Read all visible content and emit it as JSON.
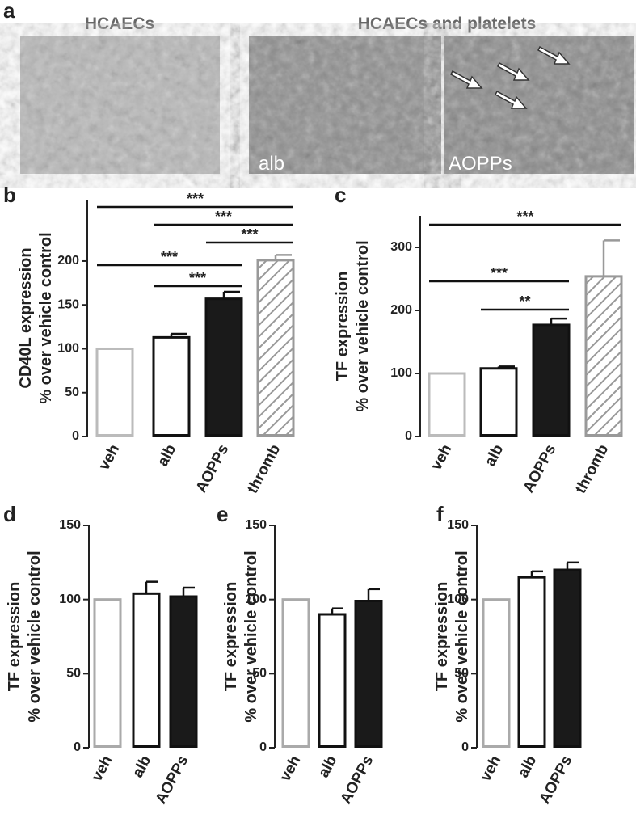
{
  "panel_a": {
    "label": "a",
    "titles": [
      "HCAECs",
      "HCAECs and platelets"
    ],
    "image_labels": [
      "alb",
      "AOPPs"
    ]
  },
  "chart_data": [
    {
      "type": "bar",
      "panel": "b",
      "ylabel": [
        "CD40L expression",
        "% over vehicle control"
      ],
      "categories": [
        "veh",
        "alb",
        "AOPPs",
        "thromb"
      ],
      "values": [
        100,
        113,
        157,
        201
      ],
      "errors": [
        0,
        4,
        8,
        6
      ],
      "colors": [
        "#bbbbbb",
        "#111111",
        "#111111",
        "#999999"
      ],
      "fills": [
        "none",
        "none",
        "#1a1a1a",
        "hatch"
      ],
      "ylim": [
        0,
        270
      ],
      "yticks": [
        0,
        50,
        100,
        150,
        200
      ],
      "brackets": [
        {
          "between": [
            "veh",
            "thromb"
          ],
          "label": "***"
        },
        {
          "between": [
            "alb",
            "thromb"
          ],
          "label": "***"
        },
        {
          "between": [
            "AOPPs",
            "thromb"
          ],
          "label": "***"
        },
        {
          "between": [
            "veh",
            "AOPPs"
          ],
          "label": "***"
        },
        {
          "between": [
            "alb",
            "AOPPs"
          ],
          "label": "***"
        }
      ]
    },
    {
      "type": "bar",
      "panel": "c",
      "ylabel": [
        "TF expression",
        "% over vehicle control"
      ],
      "categories": [
        "veh",
        "alb",
        "AOPPs",
        "thromb"
      ],
      "values": [
        100,
        108,
        177,
        254
      ],
      "errors": [
        0,
        3,
        10,
        57
      ],
      "colors": [
        "#bbbbbb",
        "#111111",
        "#111111",
        "#999999"
      ],
      "fills": [
        "none",
        "none",
        "#1a1a1a",
        "hatch"
      ],
      "ylim": [
        0,
        350
      ],
      "yticks": [
        0,
        100,
        200,
        300
      ],
      "brackets": [
        {
          "between": [
            "veh",
            "thromb"
          ],
          "label": "***"
        },
        {
          "between": [
            "veh",
            "AOPPs"
          ],
          "label": "***"
        },
        {
          "between": [
            "alb",
            "AOPPs"
          ],
          "label": "**"
        }
      ]
    },
    {
      "type": "bar",
      "panel": "d",
      "ylabel": [
        "TF expression",
        "% over vehicle control"
      ],
      "categories": [
        "veh",
        "alb",
        "AOPPs"
      ],
      "values": [
        100,
        104,
        102
      ],
      "errors": [
        0,
        8,
        6
      ],
      "colors": [
        "#aaaaaa",
        "#111111",
        "#111111"
      ],
      "fills": [
        "none",
        "none",
        "#1a1a1a"
      ],
      "ylim": [
        0,
        150
      ],
      "yticks": [
        0,
        50,
        100,
        150
      ]
    },
    {
      "type": "bar",
      "panel": "e",
      "ylabel": [
        "TF expression",
        "% over vehicle control"
      ],
      "categories": [
        "veh",
        "alb",
        "AOPPs"
      ],
      "values": [
        100,
        90,
        99
      ],
      "errors": [
        0,
        4,
        8
      ],
      "colors": [
        "#aaaaaa",
        "#111111",
        "#111111"
      ],
      "fills": [
        "none",
        "none",
        "#1a1a1a"
      ],
      "ylim": [
        0,
        150
      ],
      "yticks": [
        0,
        50,
        100,
        150
      ]
    },
    {
      "type": "bar",
      "panel": "f",
      "ylabel": [
        "TF expression",
        "% over vehicle control"
      ],
      "categories": [
        "veh",
        "alb",
        "AOPPs"
      ],
      "values": [
        100,
        115,
        120
      ],
      "errors": [
        0,
        4,
        5
      ],
      "colors": [
        "#aaaaaa",
        "#111111",
        "#111111"
      ],
      "fills": [
        "none",
        "none",
        "#1a1a1a"
      ],
      "ylim": [
        0,
        150
      ],
      "yticks": [
        0,
        50,
        100,
        150
      ]
    }
  ]
}
